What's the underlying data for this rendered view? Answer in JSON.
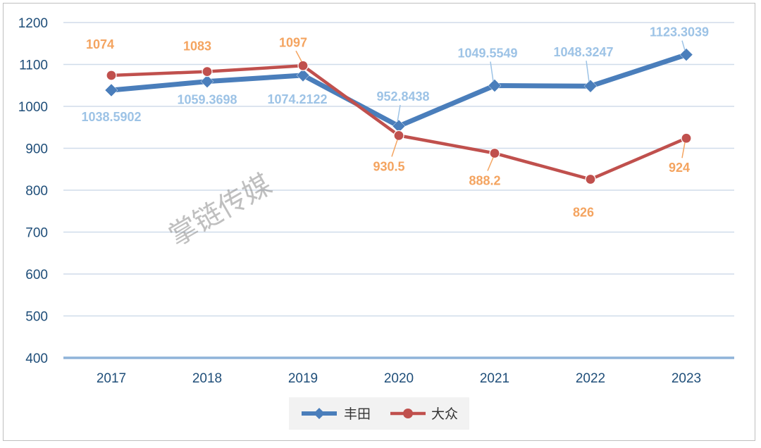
{
  "chart_data": {
    "type": "line",
    "categories": [
      "2017",
      "2018",
      "2019",
      "2020",
      "2021",
      "2022",
      "2023"
    ],
    "series": [
      {
        "name": "丰田",
        "values": [
          1038.5902,
          1059.3698,
          1074.2122,
          952.8438,
          1049.5549,
          1048.3247,
          1123.3039
        ],
        "labels": [
          "1038.5902",
          "1059.3698",
          "1074.2122",
          "952.8438",
          "1049.5549",
          "1048.3247",
          "1123.3039"
        ],
        "color": "#4a7ebb",
        "label_color": "#9dc3e6",
        "marker": "diamond"
      },
      {
        "name": "大众",
        "values": [
          1074,
          1083,
          1097,
          930.5,
          888.2,
          826,
          924
        ],
        "labels": [
          "1074",
          "1083",
          "1097",
          "930.5",
          "888.2",
          "826",
          "924"
        ],
        "color": "#c0504d",
        "label_color": "#f4a460",
        "marker": "circle"
      }
    ],
    "y_ticks": [
      "400",
      "500",
      "600",
      "700",
      "800",
      "900",
      "1000",
      "1100",
      "1200"
    ],
    "ylim": [
      400,
      1200
    ],
    "grid": true,
    "legend_position": "bottom",
    "watermark": "掌链传媒"
  }
}
